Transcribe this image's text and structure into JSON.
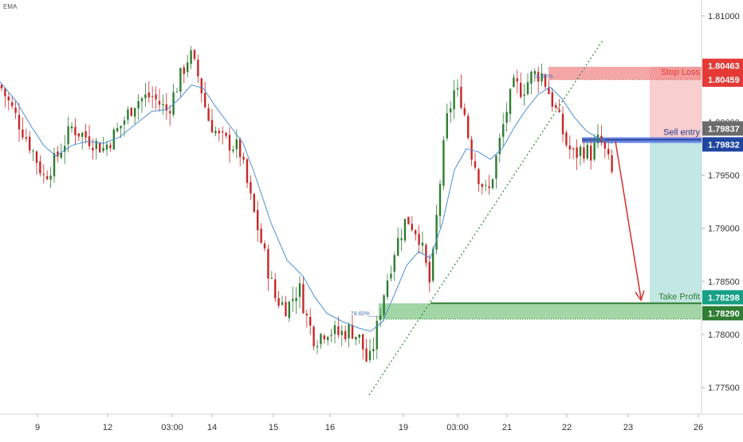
{
  "indicator_label": "EMA",
  "colors": {
    "up": "#2e7d32",
    "down": "#c62828",
    "ema": "#4a90d9",
    "stop_band": "#f28a8a",
    "entry_band": "#4169e1",
    "tp_band": "#66bb6a",
    "stop_tag": "#e53935",
    "entry_tag": "#1e46a0",
    "tp_tag_top": "#16a085",
    "tp_tag_bottom": "#2e7d32",
    "grey_tag": "#6b6b6b",
    "arrow": "#d32f2f",
    "trendline": "#388e3c"
  },
  "chart_data": {
    "type": "line",
    "xlabel": "",
    "ylabel": "",
    "grid": false,
    "price_axis_ticks": [
      "1.81000",
      "1.80500",
      "1.80000",
      "1.79500",
      "1.79000",
      "1.78500",
      "1.78000",
      "1.77500"
    ],
    "price_axis_values": [
      1.81,
      1.805,
      1.8,
      1.795,
      1.79,
      1.785,
      1.78,
      1.775
    ],
    "time_axis_ticks": [
      "9",
      "12",
      "03:00",
      "14",
      "15",
      "16",
      "19",
      "03:00",
      "21",
      "22",
      "23",
      "26"
    ],
    "ylim": [
      1.7725,
      1.8115
    ],
    "x_range": [
      0,
      932
    ],
    "time_tick_x": [
      47,
      135,
      216,
      266,
      343,
      414,
      506,
      574,
      636,
      711,
      788,
      876
    ],
    "series": [
      {
        "type": "candlestick",
        "close_path": [
          [
            0,
            1.8035
          ],
          [
            20,
            1.8005
          ],
          [
            40,
            1.7975
          ],
          [
            55,
            1.7948
          ],
          [
            70,
            1.7965
          ],
          [
            90,
            1.7995
          ],
          [
            110,
            1.7985
          ],
          [
            130,
            1.7975
          ],
          [
            150,
            1.7995
          ],
          [
            170,
            1.802
          ],
          [
            190,
            1.8025
          ],
          [
            210,
            1.801
          ],
          [
            225,
            1.804
          ],
          [
            238,
            1.8065
          ],
          [
            250,
            1.804
          ],
          [
            260,
            1.8005
          ],
          [
            275,
            1.7985
          ],
          [
            300,
            1.7975
          ],
          [
            315,
            1.7925
          ],
          [
            330,
            1.788
          ],
          [
            345,
            1.7835
          ],
          [
            360,
            1.7825
          ],
          [
            375,
            1.7845
          ],
          [
            385,
            1.7815
          ],
          [
            395,
            1.7795
          ],
          [
            410,
            1.7805
          ],
          [
            425,
            1.78
          ],
          [
            440,
            1.7805
          ],
          [
            452,
            1.7795
          ],
          [
            462,
            1.777
          ],
          [
            470,
            1.7795
          ],
          [
            480,
            1.7835
          ],
          [
            495,
            1.788
          ],
          [
            510,
            1.791
          ],
          [
            525,
            1.7895
          ],
          [
            540,
            1.7845
          ],
          [
            550,
            1.793
          ],
          [
            560,
            1.8
          ],
          [
            570,
            1.803
          ],
          [
            580,
            1.802
          ],
          [
            590,
            1.7975
          ],
          [
            600,
            1.795
          ],
          [
            612,
            1.793
          ],
          [
            625,
            1.7975
          ],
          [
            635,
            1.801
          ],
          [
            645,
            1.8035
          ],
          [
            655,
            1.803
          ],
          [
            668,
            1.8045
          ],
          [
            680,
            1.8045
          ],
          [
            690,
            1.8025
          ],
          [
            700,
            1.8005
          ],
          [
            710,
            1.798
          ],
          [
            720,
            1.7968
          ],
          [
            730,
            1.7975
          ],
          [
            742,
            1.797
          ],
          [
            752,
            1.7985
          ],
          [
            762,
            1.7965
          ],
          [
            768,
            1.795
          ]
        ]
      },
      {
        "name": "EMA",
        "type": "line",
        "points": [
          [
            0,
            1.8038
          ],
          [
            20,
            1.802
          ],
          [
            40,
            1.7995
          ],
          [
            55,
            1.7978
          ],
          [
            70,
            1.7968
          ],
          [
            90,
            1.7978
          ],
          [
            110,
            1.7982
          ],
          [
            130,
            1.798
          ],
          [
            150,
            1.7986
          ],
          [
            170,
            1.7998
          ],
          [
            190,
            1.801
          ],
          [
            210,
            1.8012
          ],
          [
            225,
            1.8022
          ],
          [
            240,
            1.8035
          ],
          [
            255,
            1.8032
          ],
          [
            270,
            1.8015
          ],
          [
            290,
            1.7995
          ],
          [
            305,
            1.798
          ],
          [
            320,
            1.795
          ],
          [
            340,
            1.7905
          ],
          [
            360,
            1.787
          ],
          [
            380,
            1.7855
          ],
          [
            395,
            1.7835
          ],
          [
            410,
            1.782
          ],
          [
            430,
            1.7812
          ],
          [
            450,
            1.7806
          ],
          [
            465,
            1.7803
          ],
          [
            480,
            1.7812
          ],
          [
            495,
            1.7838
          ],
          [
            510,
            1.7865
          ],
          [
            525,
            1.7878
          ],
          [
            540,
            1.7872
          ],
          [
            555,
            1.7905
          ],
          [
            570,
            1.7955
          ],
          [
            585,
            1.7975
          ],
          [
            600,
            1.7972
          ],
          [
            615,
            1.7965
          ],
          [
            630,
            1.7975
          ],
          [
            645,
            1.7995
          ],
          [
            660,
            1.8012
          ],
          [
            675,
            1.8026
          ],
          [
            690,
            1.8033
          ],
          [
            705,
            1.8022
          ],
          [
            720,
            1.8005
          ],
          [
            735,
            1.7992
          ],
          [
            750,
            1.7985
          ],
          [
            768,
            1.798
          ]
        ]
      }
    ],
    "levels": [
      {
        "label": "Stop Loss",
        "price_tags": [
          "1.80463",
          "1.80459"
        ],
        "values": [
          1.80463,
          1.80459
        ]
      },
      {
        "label": "Sell entry",
        "price_tags": [
          "1.79837",
          "1.79832"
        ],
        "values": [
          1.79837,
          1.79832
        ]
      },
      {
        "label": "Take Profit",
        "price_tags": [
          "1.78298",
          "1.78290"
        ],
        "values": [
          1.78298,
          1.7829
        ]
      }
    ],
    "fib_labels": [
      "78.60%",
      "61.80%",
      "78.60%"
    ],
    "annotations": [
      "Stop Loss",
      "Sell entry",
      "Take Profit"
    ]
  }
}
